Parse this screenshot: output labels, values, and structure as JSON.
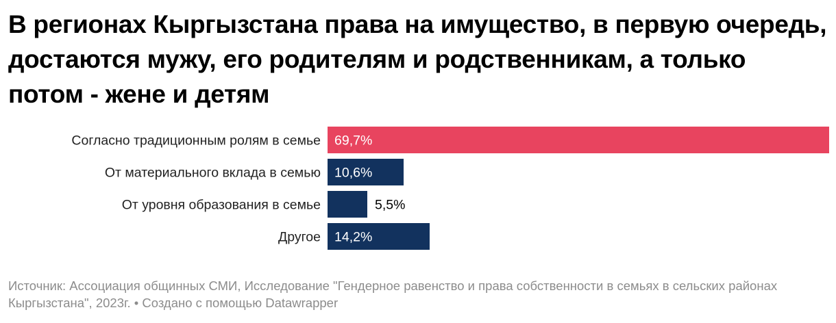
{
  "title": "В регионах Кыргызстана права на имущество, в первую очередь, достаются мужу, его родителям и родственникам, а только потом - жене и детям",
  "chart_data": {
    "type": "bar",
    "orientation": "horizontal",
    "categories": [
      "Согласно традиционным ролям в семье",
      "От материального вклада в семью",
      "От уровня образования в семье",
      "Другое"
    ],
    "values": [
      69.7,
      10.6,
      5.5,
      14.2
    ],
    "value_labels": [
      "69,7%",
      "10,6%",
      "5,5%",
      "14,2%"
    ],
    "colors": [
      "#e8445f",
      "#12325e",
      "#12325e",
      "#12325e"
    ],
    "label_color_inside": "#ffffff",
    "label_color_outside": "#000000",
    "xlim": [
      0,
      69.7
    ],
    "grid": false
  },
  "source": "Источник: Ассоциация общинных СМИ, Исследование \"Гендерное равенство и права собственности в семьях в сельских районах Кыргызстана\", 2023г. • Создано с помощью Datawrapper"
}
